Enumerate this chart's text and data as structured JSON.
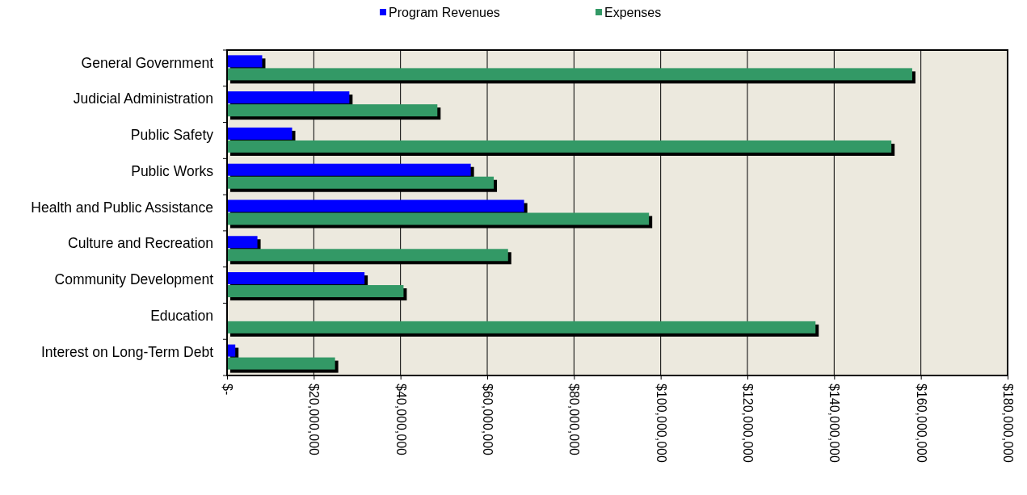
{
  "chart_data": {
    "type": "bar",
    "orientation": "horizontal",
    "categories": [
      "General Government",
      "Judicial Administration",
      "Public Safety",
      "Public Works",
      "Health and Public Assistance",
      "Culture and Recreation",
      "Community Development",
      "Education",
      "Interest on Long-Term Debt"
    ],
    "series": [
      {
        "name": "Program Revenues",
        "color": "#0000ff",
        "values": [
          8100000,
          28200000,
          15000000,
          56200000,
          68500000,
          7000000,
          31700000,
          0,
          1900000
        ]
      },
      {
        "name": "Expenses",
        "color": "#339966",
        "values": [
          158000000,
          48500000,
          153200000,
          61500000,
          97300000,
          64800000,
          40700000,
          135700000,
          24900000
        ]
      }
    ],
    "xlim": [
      0,
      180000000
    ],
    "xticks": [
      {
        "value": 0,
        "label": "$-"
      },
      {
        "value": 20000000,
        "label": "$20,000,000"
      },
      {
        "value": 40000000,
        "label": "$40,000,000"
      },
      {
        "value": 60000000,
        "label": "$60,000,000"
      },
      {
        "value": 80000000,
        "label": "$80,000,000"
      },
      {
        "value": 100000000,
        "label": "$100,000,000"
      },
      {
        "value": 120000000,
        "label": "$120,000,000"
      },
      {
        "value": 140000000,
        "label": "$140,000,000"
      },
      {
        "value": 160000000,
        "label": "$160,000,000"
      },
      {
        "value": 180000000,
        "label": "$180,000,000"
      }
    ],
    "grid": "x",
    "legend": "top"
  }
}
